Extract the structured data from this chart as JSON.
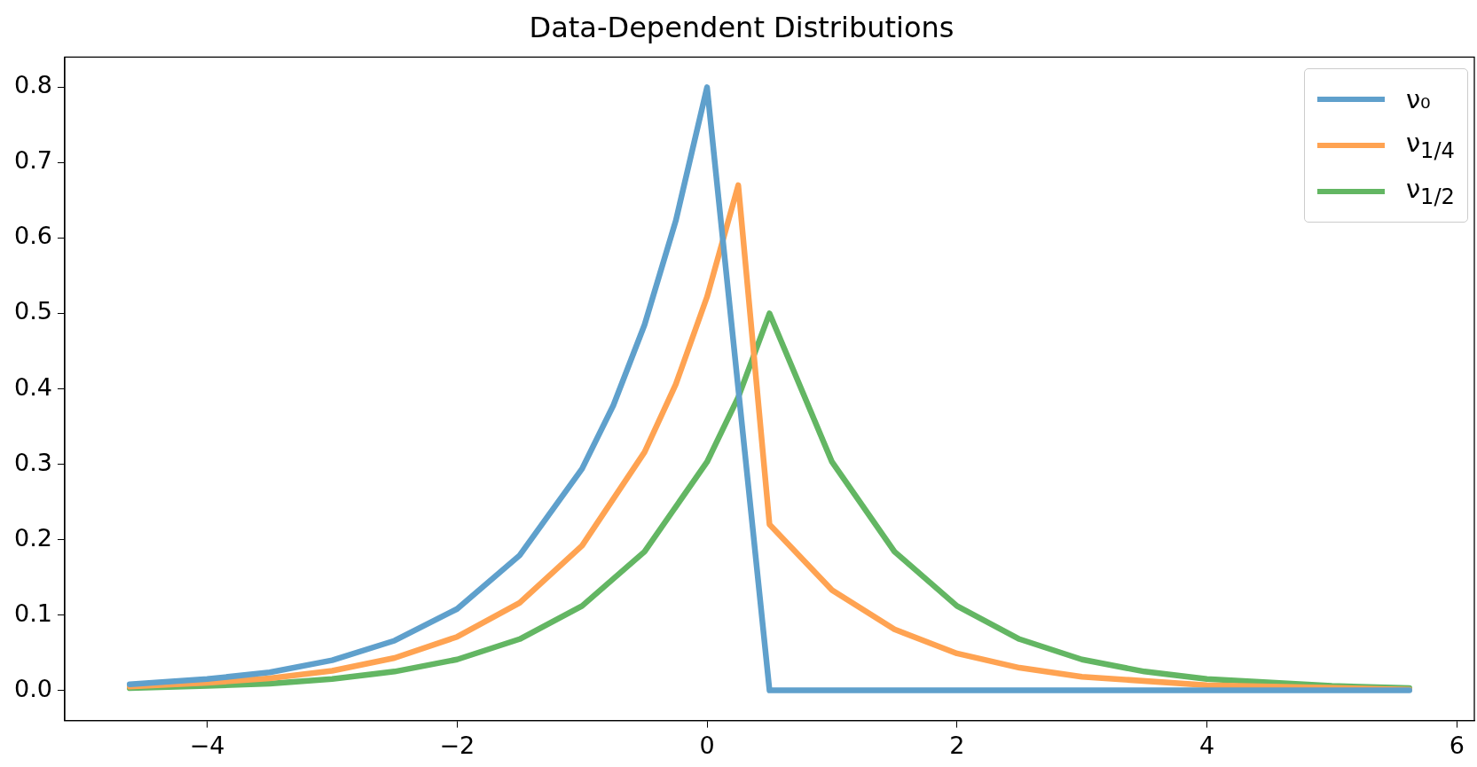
{
  "chart_data": {
    "type": "line",
    "title": "Data-Dependent Distributions",
    "xlim": [
      -5.14,
      6.14
    ],
    "ylim": [
      -0.04,
      0.84
    ],
    "xticks": [
      {
        "value": -4,
        "label": "−4"
      },
      {
        "value": -2,
        "label": "−2"
      },
      0,
      2,
      4,
      6
    ],
    "yticks": [
      {
        "value": 0,
        "label": "0.0"
      },
      0.1,
      0.2,
      0.3,
      0.4,
      0.5,
      0.6,
      0.7,
      0.8
    ],
    "grid": false,
    "legend": "top right",
    "marker": "none",
    "line_style": "solid",
    "series": [
      {
        "name": "ν₀",
        "color": "#5fa0cc",
        "x": [
          -4.62,
          -4,
          -3.5,
          -3,
          -2.5,
          -2,
          -1.5,
          -1,
          -0.75,
          -0.5,
          -0.25,
          0,
          0.5,
          5.62
        ],
        "values": [
          0.008,
          0.015,
          0.024,
          0.04,
          0.066,
          0.108,
          0.179,
          0.294,
          0.378,
          0.485,
          0.623,
          0.8,
          0,
          0
        ]
      },
      {
        "name": "ν$_{1/4}$",
        "color": "#ffa352",
        "x": [
          -4.62,
          -4,
          -3.5,
          -3,
          -2.5,
          -2,
          -1.5,
          -1,
          -0.5,
          -0.25,
          0,
          0.25,
          0.5,
          1,
          1.5,
          2,
          2.5,
          3,
          4,
          5.62
        ],
        "values": [
          0.005,
          0.01,
          0.016,
          0.026,
          0.043,
          0.071,
          0.116,
          0.192,
          0.316,
          0.406,
          0.522,
          0.67,
          0.22,
          0.133,
          0.081,
          0.049,
          0.03,
          0.018,
          0.007,
          0.001
        ]
      },
      {
        "name": "ν$_{1/2}$",
        "color": "#63b663",
        "x": [
          -4.62,
          -4,
          -3.5,
          -3,
          -2.5,
          -2,
          -1.5,
          -1,
          -0.5,
          0,
          0.25,
          0.5,
          1,
          1.5,
          2,
          2.5,
          3,
          3.5,
          4,
          5,
          5.62
        ],
        "values": [
          0.003,
          0.006,
          0.009,
          0.015,
          0.025,
          0.041,
          0.068,
          0.112,
          0.184,
          0.303,
          0.389,
          0.5,
          0.303,
          0.184,
          0.112,
          0.068,
          0.041,
          0.025,
          0.015,
          0.006,
          0.003
        ]
      }
    ]
  }
}
